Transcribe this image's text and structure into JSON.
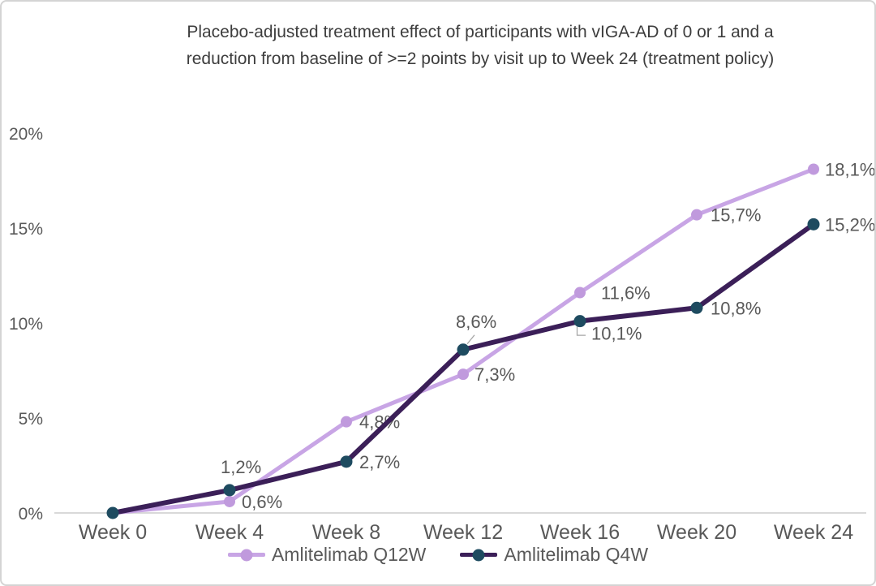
{
  "chart_data": {
    "type": "line",
    "title": "Placebo-adjusted treatment effect of participants with vIGA-AD of 0 or 1 and a reduction from baseline of >=2 points by visit up to Week 24 (treatment policy)",
    "title_lines": [
      "Placebo-adjusted treatment effect of participants with vIGA-AD of 0 or 1 and a",
      "reduction from baseline of >=2 points by visit up to Week 24 (treatment policy)"
    ],
    "categories": [
      "Week 0",
      "Week 4",
      "Week 8",
      "Week 12",
      "Week 16",
      "Week 20",
      "Week 24"
    ],
    "y_ticks": [
      {
        "label": "0%",
        "value": 0
      },
      {
        "label": "5%",
        "value": 5
      },
      {
        "label": "10%",
        "value": 10
      },
      {
        "label": "15%",
        "value": 15
      },
      {
        "label": "20%",
        "value": 20
      }
    ],
    "ylim": [
      0,
      20
    ],
    "grid": "off",
    "legend_position": "bottom",
    "series": [
      {
        "name": "Amlitelimab Q12W",
        "color": "#c8a5e5",
        "marker_color": "#c09add",
        "values": [
          0,
          0.6,
          4.8,
          7.3,
          11.6,
          15.7,
          18.1
        ],
        "labels": [
          "",
          "0,6%",
          "4,8%",
          "7,3%",
          "11,6%",
          "15,7%",
          "18,1%"
        ]
      },
      {
        "name": "Amlitelimab Q4W",
        "color": "#3b1f58",
        "marker_color": "#1e4b60",
        "values": [
          0,
          1.2,
          2.7,
          8.6,
          10.1,
          10.8,
          15.2
        ],
        "labels": [
          "",
          "1,2%",
          "2,7%",
          "8,6%",
          "10,1%",
          "10,8%",
          "15,2%"
        ]
      }
    ],
    "colors": {
      "title_text": "#3d3d3d",
      "axis_text": "#595959",
      "data_label_text": "#595959",
      "axis_line": "#d9d9d9",
      "leader_line": "#a6a6a6"
    }
  }
}
